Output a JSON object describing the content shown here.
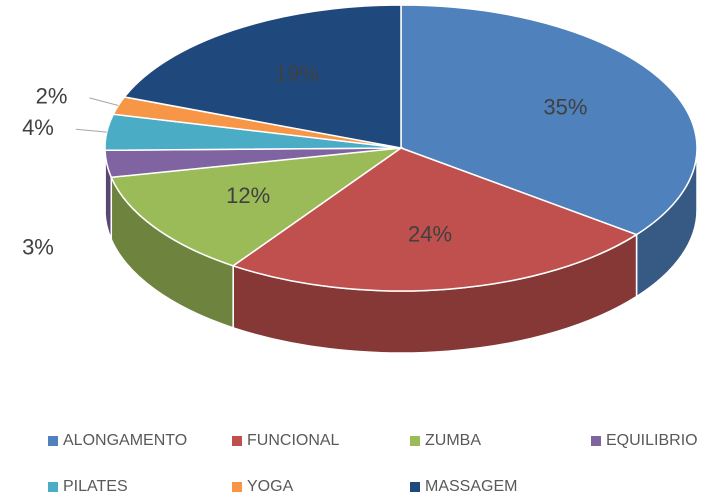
{
  "chart_data": {
    "type": "pie3d",
    "categories": [
      "ALONGAMENTO",
      "FUNCIONAL",
      "ZUMBA",
      "EQUILIBRIO",
      "PILATES",
      "YOGA",
      "MASSAGEM"
    ],
    "values": [
      35,
      24,
      12,
      3,
      4,
      2,
      19
    ],
    "value_labels": [
      "35%",
      "24%",
      "12%",
      "3%",
      "4%",
      "2%",
      "19%"
    ],
    "colors": [
      "#4f81bd",
      "#c0504d",
      "#9bbb59",
      "#8064a2",
      "#4bacc6",
      "#f79646",
      "#1f497d"
    ],
    "legend": "bottom"
  }
}
